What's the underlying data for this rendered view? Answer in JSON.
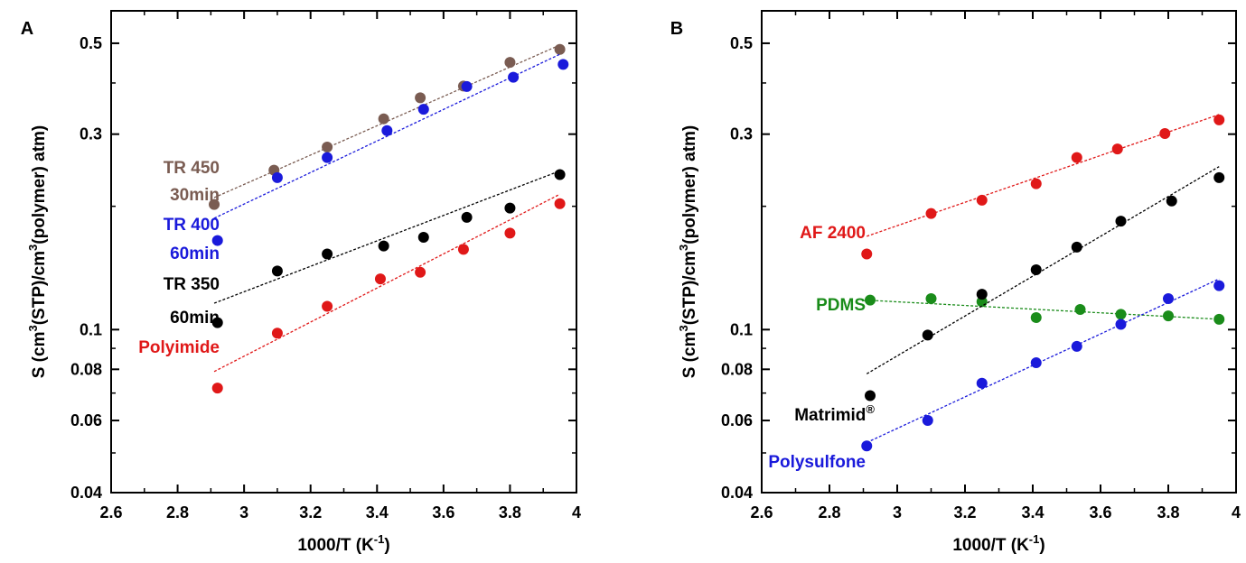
{
  "figure": {
    "panels": [
      "A",
      "B"
    ]
  },
  "chart_data": [
    {
      "panel": "A",
      "type": "scatter",
      "title": "",
      "xlabel": "1000/T (K",
      "xlabel_sup": "-1",
      "xlabel_end": ")",
      "ylabel": "S (cm",
      "ylabel_sup1": "3",
      "ylabel_mid": "(STP)/cm",
      "ylabel_sup2": "3",
      "ylabel_end": "(polymer) atm)",
      "xlim": [
        2.6,
        4.0
      ],
      "ylim": [
        0.04,
        0.6
      ],
      "yscale": "log",
      "xticks": [
        2.6,
        2.8,
        3.0,
        3.2,
        3.4,
        3.6,
        3.8,
        4.0
      ],
      "xtick_labels": [
        "2.6",
        "2.8",
        "3",
        "3.2",
        "3.4",
        "3.6",
        "3.8",
        "4"
      ],
      "yticks": [
        0.04,
        0.06,
        0.08,
        0.1,
        0.3,
        0.5
      ],
      "ytick_labels": [
        "0.04",
        "0.06",
        "0.08",
        "0.1",
        "0.3",
        "0.5"
      ],
      "grid": false,
      "series": [
        {
          "name": "TR 450 30min",
          "label_lines": [
            "TR 450",
            "30min"
          ],
          "color": "#7a5c52",
          "x": [
            2.91,
            3.09,
            3.25,
            3.42,
            3.53,
            3.66,
            3.8,
            3.95
          ],
          "y": [
            0.202,
            0.245,
            0.279,
            0.327,
            0.368,
            0.393,
            0.449,
            0.483
          ],
          "fit": {
            "x": [
              2.91,
              3.95
            ],
            "y": [
              0.21,
              0.495
            ]
          }
        },
        {
          "name": "TR 400 60min",
          "label_lines": [
            "TR 400",
            "60min"
          ],
          "color": "#1a1adb",
          "x": [
            2.92,
            3.1,
            3.25,
            3.43,
            3.54,
            3.67,
            3.81,
            3.96
          ],
          "y": [
            0.165,
            0.235,
            0.263,
            0.306,
            0.345,
            0.392,
            0.413,
            0.444
          ],
          "fit": {
            "x": [
              2.91,
              3.95
            ],
            "y": [
              0.187,
              0.47
            ]
          }
        },
        {
          "name": "TR 350 60min",
          "label_lines": [
            "TR 350",
            "60min"
          ],
          "color": "#000000",
          "x": [
            2.92,
            3.1,
            3.25,
            3.42,
            3.54,
            3.67,
            3.8,
            3.95
          ],
          "y": [
            0.104,
            0.139,
            0.153,
            0.16,
            0.168,
            0.188,
            0.198,
            0.239
          ],
          "fit": {
            "x": [
              2.91,
              3.95
            ],
            "y": [
              0.116,
              0.244
            ]
          }
        },
        {
          "name": "Polyimide",
          "label_lines": [
            "Polyimide"
          ],
          "color": "#e01818",
          "x": [
            2.92,
            3.1,
            3.25,
            3.41,
            3.53,
            3.66,
            3.8,
            3.95
          ],
          "y": [
            0.072,
            0.098,
            0.114,
            0.133,
            0.138,
            0.157,
            0.172,
            0.203
          ],
          "fit": {
            "x": [
              2.91,
              3.95
            ],
            "y": [
              0.079,
              0.214
            ]
          }
        }
      ]
    },
    {
      "panel": "B",
      "type": "scatter",
      "title": "",
      "xlabel": "1000/T (K",
      "xlabel_sup": "-1",
      "xlabel_end": ")",
      "ylabel": "S (cm",
      "ylabel_sup1": "3",
      "ylabel_mid": "(STP)/cm",
      "ylabel_sup2": "3",
      "ylabel_end": "(polymer) atm)",
      "xlim": [
        2.6,
        4.0
      ],
      "ylim": [
        0.04,
        0.6
      ],
      "yscale": "log",
      "xticks": [
        2.6,
        2.8,
        3.0,
        3.2,
        3.4,
        3.6,
        3.8,
        4.0
      ],
      "xtick_labels": [
        "2.6",
        "2.8",
        "3",
        "3.2",
        "3.4",
        "3.6",
        "3.8",
        "4"
      ],
      "yticks": [
        0.04,
        0.06,
        0.08,
        0.1,
        0.3,
        0.5
      ],
      "ytick_labels": [
        "0.04",
        "0.06",
        "0.08",
        "0.1",
        "0.3",
        "0.5"
      ],
      "grid": false,
      "series": [
        {
          "name": "AF 2400",
          "label_lines": [
            "AF 2400"
          ],
          "color": "#e01818",
          "x": [
            2.91,
            3.1,
            3.25,
            3.41,
            3.53,
            3.65,
            3.79,
            3.95
          ],
          "y": [
            0.153,
            0.192,
            0.207,
            0.227,
            0.263,
            0.276,
            0.301,
            0.325
          ],
          "fit": {
            "x": [
              2.91,
              3.95
            ],
            "y": [
              0.169,
              0.335
            ]
          }
        },
        {
          "name": "PDMS",
          "label_lines": [
            "PDMS"
          ],
          "color": "#1a8c1a",
          "x": [
            2.92,
            3.1,
            3.25,
            3.41,
            3.54,
            3.66,
            3.8,
            3.95
          ],
          "y": [
            0.118,
            0.119,
            0.117,
            0.107,
            0.112,
            0.109,
            0.108,
            0.106
          ],
          "fit": {
            "x": [
              2.91,
              3.95
            ],
            "y": [
              0.118,
              0.106
            ]
          }
        },
        {
          "name": "Matrimid®",
          "label_lines": [
            "Matrimid"
          ],
          "label_sup": "®",
          "color": "#000000",
          "x": [
            2.92,
            3.09,
            3.25,
            3.41,
            3.53,
            3.66,
            3.81,
            3.95
          ],
          "y": [
            0.069,
            0.097,
            0.122,
            0.14,
            0.159,
            0.184,
            0.206,
            0.235
          ],
          "fit": {
            "x": [
              2.91,
              3.95
            ],
            "y": [
              0.078,
              0.25
            ]
          }
        },
        {
          "name": "Polysulfone",
          "label_lines": [
            "Polysulfone"
          ],
          "color": "#1a1adb",
          "x": [
            2.91,
            3.09,
            3.25,
            3.41,
            3.53,
            3.66,
            3.8,
            3.95
          ],
          "y": [
            0.052,
            0.06,
            0.074,
            0.083,
            0.091,
            0.103,
            0.119,
            0.128
          ],
          "fit": {
            "x": [
              2.91,
              3.95
            ],
            "y": [
              0.053,
              0.133
            ]
          }
        }
      ]
    }
  ]
}
